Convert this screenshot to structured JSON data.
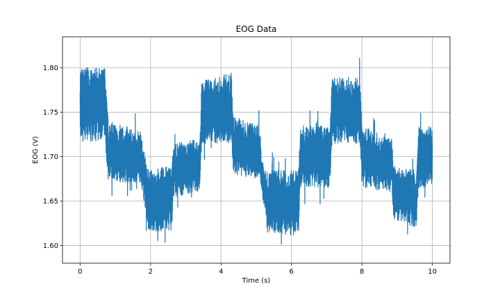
{
  "chart_data": {
    "type": "line",
    "title": "EOG Data",
    "xlabel": "Time (s)",
    "ylabel": "EOG (V)",
    "xlim": [
      -0.5,
      10.5
    ],
    "ylim": [
      1.58,
      1.835
    ],
    "xticks": [
      0,
      2,
      4,
      6,
      8,
      10
    ],
    "xtick_labels": [
      "0",
      "2",
      "4",
      "6",
      "8",
      "10"
    ],
    "yticks": [
      1.6,
      1.65,
      1.7,
      1.75,
      1.8
    ],
    "ytick_labels": [
      "1.60",
      "1.65",
      "1.70",
      "1.75",
      "1.80"
    ],
    "grid": true,
    "color": "#1f77b4",
    "series": [
      {
        "envelope": [
          {
            "x": 0.0,
            "low": 1.715,
            "high": 1.8
          },
          {
            "x": 0.7,
            "low": 1.72,
            "high": 1.8
          },
          {
            "x": 0.8,
            "low": 1.672,
            "high": 1.74
          },
          {
            "x": 1.7,
            "low": 1.67,
            "high": 1.73
          },
          {
            "x": 1.85,
            "low": 1.64,
            "high": 1.7
          },
          {
            "x": 1.95,
            "low": 1.615,
            "high": 1.685
          },
          {
            "x": 2.6,
            "low": 1.615,
            "high": 1.69
          },
          {
            "x": 2.65,
            "low": 1.655,
            "high": 1.715
          },
          {
            "x": 3.4,
            "low": 1.66,
            "high": 1.72
          },
          {
            "x": 3.45,
            "low": 1.715,
            "high": 1.785
          },
          {
            "x": 4.3,
            "low": 1.715,
            "high": 1.795
          },
          {
            "x": 4.35,
            "low": 1.68,
            "high": 1.745
          },
          {
            "x": 5.1,
            "low": 1.675,
            "high": 1.735
          },
          {
            "x": 5.15,
            "low": 1.66,
            "high": 1.7
          },
          {
            "x": 5.3,
            "low": 1.615,
            "high": 1.685
          },
          {
            "x": 6.2,
            "low": 1.61,
            "high": 1.685
          },
          {
            "x": 6.25,
            "low": 1.665,
            "high": 1.735
          },
          {
            "x": 7.1,
            "low": 1.665,
            "high": 1.735
          },
          {
            "x": 7.15,
            "low": 1.715,
            "high": 1.79
          },
          {
            "x": 7.95,
            "low": 1.715,
            "high": 1.79
          },
          {
            "x": 8.0,
            "low": 1.665,
            "high": 1.735
          },
          {
            "x": 8.85,
            "low": 1.66,
            "high": 1.72
          },
          {
            "x": 8.9,
            "low": 1.63,
            "high": 1.69
          },
          {
            "x": 9.55,
            "low": 1.62,
            "high": 1.685
          },
          {
            "x": 9.6,
            "low": 1.665,
            "high": 1.735
          },
          {
            "x": 10.0,
            "low": 1.665,
            "high": 1.735
          }
        ]
      }
    ]
  }
}
